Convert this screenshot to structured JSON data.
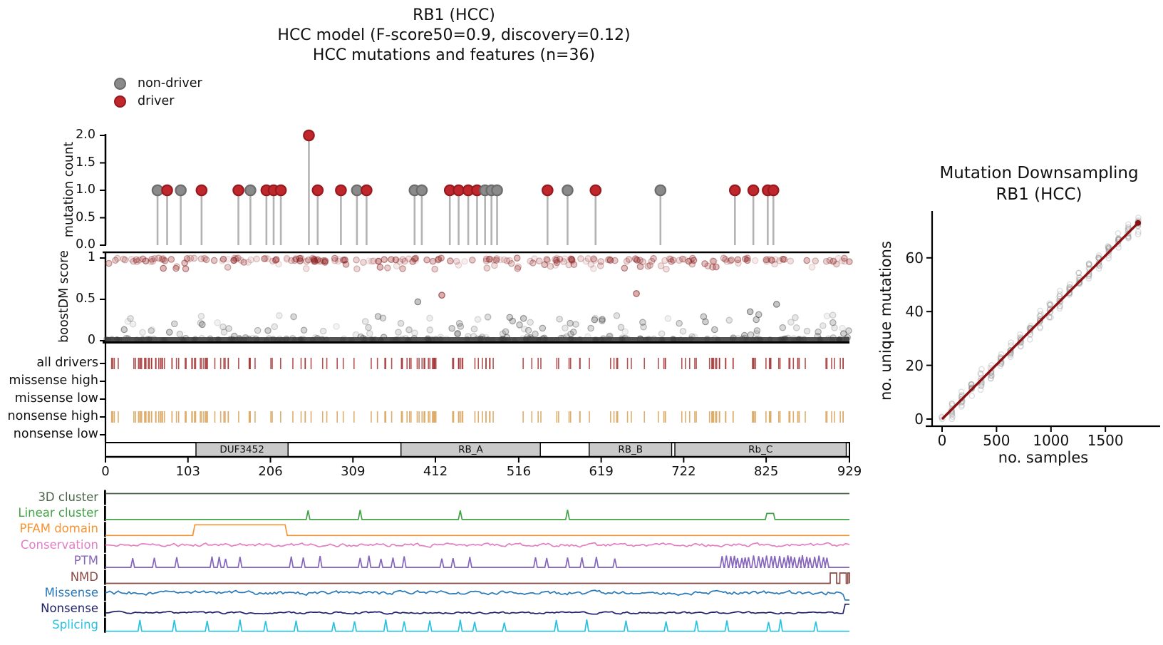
{
  "figure": {
    "title_lines": [
      "RB1 (HCC)",
      "HCC model (F-score50=0.9, discovery=0.12)",
      "HCC mutations and features (n=36)"
    ],
    "legend": [
      {
        "label": "non-driver",
        "color": "#8a8a8a",
        "edge": "#6b6b6b"
      },
      {
        "label": "driver",
        "color": "#c0272d",
        "edge": "#96191e"
      }
    ]
  },
  "colors": {
    "driver": "#c0272d",
    "driver_edge": "#96191e",
    "non_driver": "#8a8a8a",
    "non_driver_edge": "#6b6b6b",
    "stem": "#b3b3b3",
    "score_driver": "#8c1c1c",
    "score_passenger": "#3f3f3f",
    "all_drivers_tick": "#a23535",
    "nonsense_high_tick": "#dcaa64",
    "domain_fill": "#cacaca",
    "axis": "#000000"
  },
  "chart_data": [
    {
      "id": "mutation_needle_plot",
      "type": "lollipop",
      "ylabel": "mutation count",
      "yticks": [
        "0.0",
        "0.5",
        "1.0",
        "1.5",
        "2.0"
      ],
      "ylim": [
        0,
        2.0
      ],
      "xlim": [
        0,
        929
      ],
      "points": [
        {
          "pos": 65,
          "count": 1,
          "driver": false
        },
        {
          "pos": 77,
          "count": 1,
          "driver": true
        },
        {
          "pos": 94,
          "count": 1,
          "driver": false
        },
        {
          "pos": 120,
          "count": 1,
          "driver": true
        },
        {
          "pos": 166,
          "count": 1,
          "driver": true
        },
        {
          "pos": 181,
          "count": 1,
          "driver": false
        },
        {
          "pos": 201,
          "count": 1,
          "driver": true
        },
        {
          "pos": 210,
          "count": 1,
          "driver": true
        },
        {
          "pos": 219,
          "count": 1,
          "driver": true
        },
        {
          "pos": 254,
          "count": 2,
          "driver": true
        },
        {
          "pos": 265,
          "count": 1,
          "driver": true
        },
        {
          "pos": 294,
          "count": 1,
          "driver": true
        },
        {
          "pos": 314,
          "count": 1,
          "driver": false
        },
        {
          "pos": 326,
          "count": 1,
          "driver": true
        },
        {
          "pos": 386,
          "count": 1,
          "driver": false
        },
        {
          "pos": 395,
          "count": 1,
          "driver": false
        },
        {
          "pos": 430,
          "count": 1,
          "driver": true
        },
        {
          "pos": 441,
          "count": 1,
          "driver": true
        },
        {
          "pos": 453,
          "count": 1,
          "driver": true
        },
        {
          "pos": 464,
          "count": 1,
          "driver": true
        },
        {
          "pos": 474,
          "count": 1,
          "driver": false
        },
        {
          "pos": 482,
          "count": 1,
          "driver": false
        },
        {
          "pos": 489,
          "count": 1,
          "driver": false
        },
        {
          "pos": 552,
          "count": 1,
          "driver": true
        },
        {
          "pos": 577,
          "count": 1,
          "driver": false
        },
        {
          "pos": 612,
          "count": 1,
          "driver": true
        },
        {
          "pos": 693,
          "count": 1,
          "driver": false
        },
        {
          "pos": 786,
          "count": 1,
          "driver": true
        },
        {
          "pos": 809,
          "count": 1,
          "driver": true
        },
        {
          "pos": 827,
          "count": 1,
          "driver": true
        },
        {
          "pos": 834,
          "count": 1,
          "driver": true
        }
      ]
    },
    {
      "id": "boostdm_score_scatter",
      "type": "scatter",
      "ylabel": "boostDM score",
      "yticks": [
        "0",
        "0.5",
        "1"
      ],
      "ylim": [
        0,
        1
      ],
      "xlim": [
        0,
        929
      ],
      "bands": {
        "driver_band": {
          "n": 250,
          "y_main": [
            0.955,
            1.0
          ],
          "y_tail": [
            0.86,
            0.95
          ],
          "seed": 101
        },
        "passenger_band": {
          "n": 175,
          "y_range": [
            0.02,
            0.32
          ],
          "seed": 202
        },
        "baseline_band": {
          "n": 130,
          "y_range": [
            0.0,
            0.025
          ],
          "seed": 303
        }
      },
      "outliers_driver": [
        [
          420,
          0.55
        ],
        [
          663,
          0.57
        ]
      ],
      "outliers_passenger": [
        [
          390,
          0.47
        ],
        [
          805,
          0.35
        ],
        [
          838,
          0.44
        ]
      ]
    },
    {
      "id": "driver_classification_tracks",
      "rows": [
        "all drivers",
        "missense high",
        "missense low",
        "nonsense high",
        "nonsense low"
      ],
      "populated_rows": [
        "all drivers",
        "nonsense high"
      ],
      "n_ticks": 170,
      "seed": 77
    },
    {
      "id": "protein_domain_map",
      "length": 929,
      "xticks": [
        0,
        103,
        206,
        309,
        412,
        516,
        619,
        722,
        825,
        929
      ],
      "domains": [
        {
          "name": "DUF3452",
          "start": 113,
          "end": 228
        },
        {
          "name": "RB_A",
          "start": 369,
          "end": 543
        },
        {
          "name": "RB_B",
          "start": 604,
          "end": 707
        },
        {
          "name": "Rb_C",
          "start": 711,
          "end": 925
        }
      ]
    },
    {
      "id": "feature_tracks",
      "tracks": [
        {
          "name": "3D cluster",
          "color": "#4a6347",
          "kind": "flat"
        },
        {
          "name": "Linear cluster",
          "color": "#41a344",
          "kind": "spikes",
          "spikes": [
            253,
            318,
            443,
            577
          ],
          "plateau": [
            824,
            836
          ]
        },
        {
          "name": "PFAM domain",
          "color": "#f79432",
          "kind": "step",
          "step": [
            109,
            227
          ]
        },
        {
          "name": "Conservation",
          "color": "#e27fc4",
          "kind": "noise",
          "amp": 4.0,
          "seed": 11
        },
        {
          "name": "PTM",
          "color": "#8665bd",
          "kind": "spikes",
          "spikes": [
            34,
            61,
            89,
            133,
            142,
            150,
            168,
            232,
            247,
            268,
            318,
            329,
            344,
            359,
            373,
            420,
            434,
            455,
            537,
            551,
            577,
            595,
            613,
            636
          ],
          "dense": [
            770,
            905
          ]
        },
        {
          "name": "NMD",
          "color": "#8b4a44",
          "kind": "steps",
          "segments": [
            [
              905,
              913
            ],
            [
              917,
              925
            ],
            [
              927,
              929
            ]
          ]
        },
        {
          "name": "Missense",
          "color": "#2878b8",
          "kind": "noise",
          "amp": 4.5,
          "seed": 12,
          "end_dip": true
        },
        {
          "name": "Nonsense",
          "color": "#20206b",
          "kind": "noise",
          "amp": 2.4,
          "seed": 13,
          "end_spike": true
        },
        {
          "name": "Splicing",
          "color": "#29c1e0",
          "kind": "spikes",
          "spikes": [
            43,
            86,
            127,
            168,
            200,
            238,
            285,
            311,
            350,
            373,
            405,
            443,
            461,
            498,
            563,
            601,
            650,
            700,
            738,
            776,
            828,
            843,
            887
          ]
        }
      ]
    },
    {
      "id": "mutation_downsampling",
      "type": "scatter",
      "title_lines": [
        "Mutation Downsampling",
        "RB1 (HCC)"
      ],
      "xlabel": "no. samples",
      "ylabel": "no. unique mutations",
      "xticks": [
        0,
        500,
        1000,
        1500
      ],
      "yticks": [
        0,
        20,
        40,
        60
      ],
      "xlim": [
        0,
        1850
      ],
      "ylim": [
        0,
        75
      ],
      "trend_line": {
        "from": [
          0,
          0
        ],
        "to": [
          1800,
          73
        ],
        "color": "#8b1010"
      },
      "clusters": {
        "x_step": 90,
        "n_clusters": 21,
        "points_per_cluster": 12,
        "y_slope": 0.0406,
        "y_sigma": 2.4,
        "seed": 21
      },
      "point_color": "#888888"
    }
  ]
}
